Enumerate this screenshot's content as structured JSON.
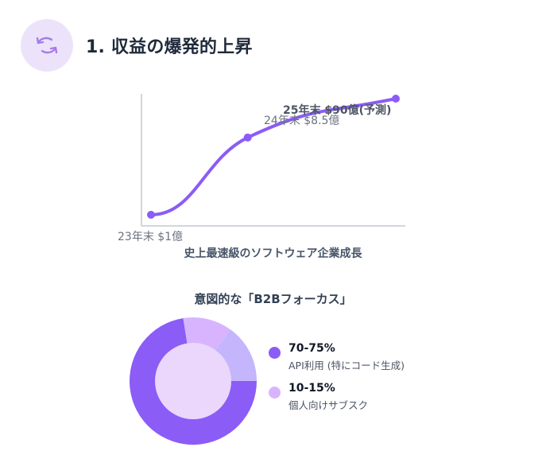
{
  "header": {
    "icon": "rotate-arrows-icon",
    "title": "1. 収益の爆発的上昇"
  },
  "colors": {
    "accent": "#8b5cf6",
    "icon_bg": "#ece3fb",
    "axis": "#d1d5db",
    "donut_dark": "#8b5cf6",
    "donut_light": "#c4b5fd",
    "donut_center": "#ead7fb"
  },
  "chart_data": [
    {
      "type": "line",
      "title": "",
      "caption": "史上最速級のソフトウェア企業成長",
      "x": [
        2023,
        2024,
        2025
      ],
      "series": [
        {
          "values": [
            1,
            8.5,
            90
          ]
        }
      ],
      "point_labels": [
        "23年末 $1億",
        "24年末 $8.5億",
        "25年末 $90億(予測)"
      ],
      "grid": false
    },
    {
      "type": "pie",
      "title": "意図的な「B2Bフォーカス」",
      "slices": [
        {
          "value": 72.5,
          "display_value": "70-75%",
          "label": "API利用 (特にコード生成)",
          "color": "#8b5cf6"
        },
        {
          "value": 12.5,
          "display_value": "10-15%",
          "label": "個人向けサブスク",
          "color": "#d8b4fe"
        },
        {
          "value": 15,
          "color": "#c4b5fd"
        }
      ],
      "legend_position": "right"
    }
  ]
}
